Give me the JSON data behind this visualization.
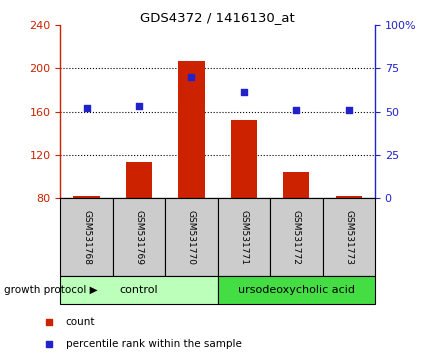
{
  "title": "GDS4372 / 1416130_at",
  "samples": [
    "GSM531768",
    "GSM531769",
    "GSM531770",
    "GSM531771",
    "GSM531772",
    "GSM531773"
  ],
  "count_values": [
    82,
    113,
    207,
    152,
    104,
    82
  ],
  "percentile_values": [
    52,
    53,
    70,
    61,
    51,
    51
  ],
  "bar_bottom": 80,
  "left_ylim": [
    80,
    240
  ],
  "right_ylim": [
    0,
    100
  ],
  "left_yticks": [
    80,
    120,
    160,
    200,
    240
  ],
  "right_yticks": [
    0,
    25,
    50,
    75,
    100
  ],
  "right_yticklabels": [
    "0",
    "25",
    "50",
    "75",
    "100%"
  ],
  "bar_color": "#cc2200",
  "dot_color": "#2222cc",
  "control_label": "control",
  "treatment_label": "ursodeoxycholic acid",
  "group_label": "growth protocol",
  "control_color": "#bbffbb",
  "treatment_color": "#44dd44",
  "sample_box_color": "#cccccc",
  "legend_count": "count",
  "legend_percentile": "percentile rank within the sample",
  "control_samples": [
    0,
    1,
    2
  ],
  "treatment_samples": [
    3,
    4,
    5
  ],
  "fig_width": 4.31,
  "fig_height": 3.54,
  "dpi": 100
}
